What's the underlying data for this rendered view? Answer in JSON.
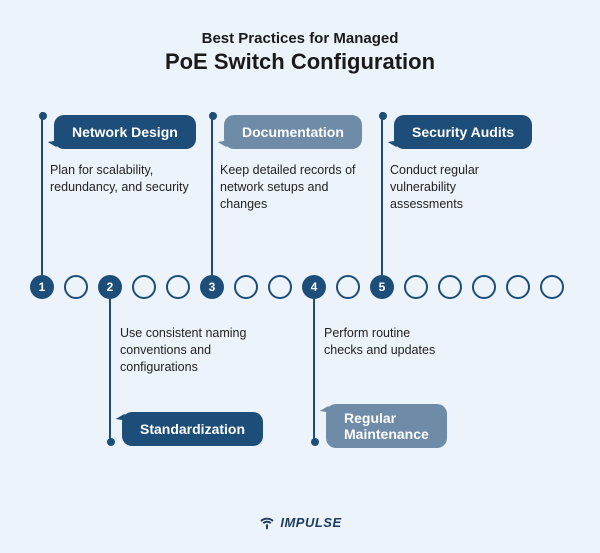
{
  "header": {
    "line1": "Best Practices for Managed",
    "line2": "PoE Switch Configuration"
  },
  "colors": {
    "dark": "#1d4e7a",
    "light": "#6e8ca8",
    "bg": "#edf3fa",
    "text": "#1a1a1a"
  },
  "timeline": {
    "total_circles": 16,
    "numbered_positions": [
      0,
      2,
      5,
      8,
      10
    ],
    "circle_size": 24,
    "gap": 10
  },
  "items": [
    {
      "num": "1",
      "title": "Network Design",
      "desc": "Plan for scalability, redundancy, and security",
      "position": "top",
      "pill_style": "dark"
    },
    {
      "num": "2",
      "title": "Standardization",
      "desc": "Use consistent naming conventions and configurations",
      "position": "bottom",
      "pill_style": "dark"
    },
    {
      "num": "3",
      "title": "Documentation",
      "desc": "Keep detailed records of network setups and changes",
      "position": "top",
      "pill_style": "light"
    },
    {
      "num": "4",
      "title": "Regular Maintenance",
      "desc": "Perform routine checks and updates",
      "position": "bottom",
      "pill_style": "light"
    },
    {
      "num": "5",
      "title": "Security Audits",
      "desc": "Conduct regular vulnerability assessments",
      "position": "top",
      "pill_style": "dark"
    }
  ],
  "footer": {
    "brand": "IMPULSE"
  }
}
